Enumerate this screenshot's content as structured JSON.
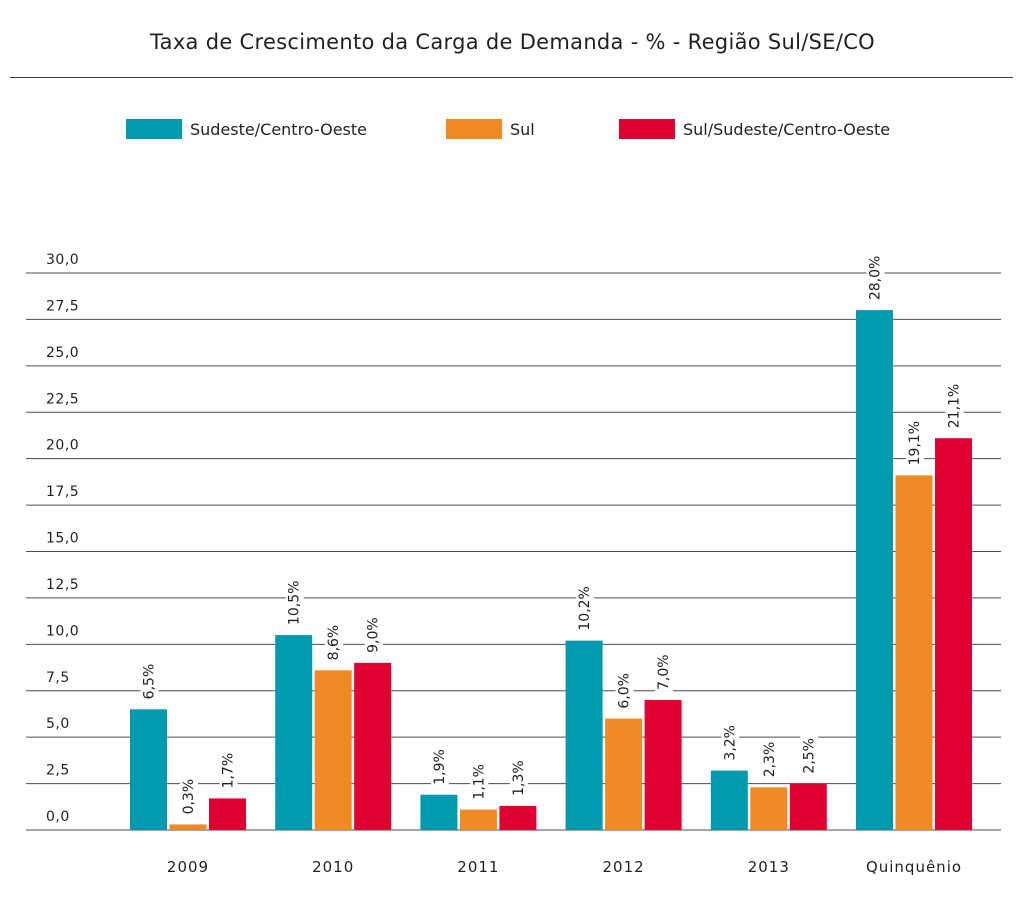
{
  "title": "Taxa de Crescimento da Carga de Demanda - % - Região Sul/SE/CO",
  "colors": {
    "se_co": "#0099b0",
    "sul": "#f08a24",
    "sul_se_co": "#de0030",
    "grid": "#4d4d4d"
  },
  "chart_data": {
    "type": "bar",
    "title": "Taxa de Crescimento da Carga de Demanda - % - Região Sul/SE/CO",
    "xlabel": "",
    "ylabel": "",
    "ylim": [
      0,
      30
    ],
    "y_ticks": [
      "0,0",
      "2,5",
      "5,0",
      "7,5",
      "10,0",
      "12,5",
      "15,0",
      "17,5",
      "20,0",
      "22,5",
      "25,0",
      "27,5",
      "30,0"
    ],
    "categories": [
      "2009",
      "2010",
      "2011",
      "2012",
      "2013",
      "Quinquênio"
    ],
    "grid": true,
    "legend_position": "top",
    "series": [
      {
        "name": "Sudeste/Centro-Oeste",
        "color": "#0099b0",
        "values": [
          6.5,
          10.5,
          1.9,
          10.2,
          3.2,
          28.0
        ],
        "labels": [
          "6,5%",
          "10,5%",
          "1,9%",
          "10,2%",
          "3,2%",
          "28,0%"
        ]
      },
      {
        "name": "Sul",
        "color": "#f08a24",
        "values": [
          0.3,
          8.6,
          1.1,
          6.0,
          2.3,
          19.1
        ],
        "labels": [
          "0,3%",
          "8,6%",
          "1,1%",
          "6,0%",
          "2,3%",
          "19,1%"
        ]
      },
      {
        "name": "Sul/Sudeste/Centro-Oeste",
        "color": "#de0030",
        "values": [
          1.7,
          9.0,
          1.3,
          7.0,
          2.5,
          21.1
        ],
        "labels": [
          "1,7%",
          "9,0%",
          "1,3%",
          "7,0%",
          "2,5%",
          "21,1%"
        ]
      }
    ]
  }
}
